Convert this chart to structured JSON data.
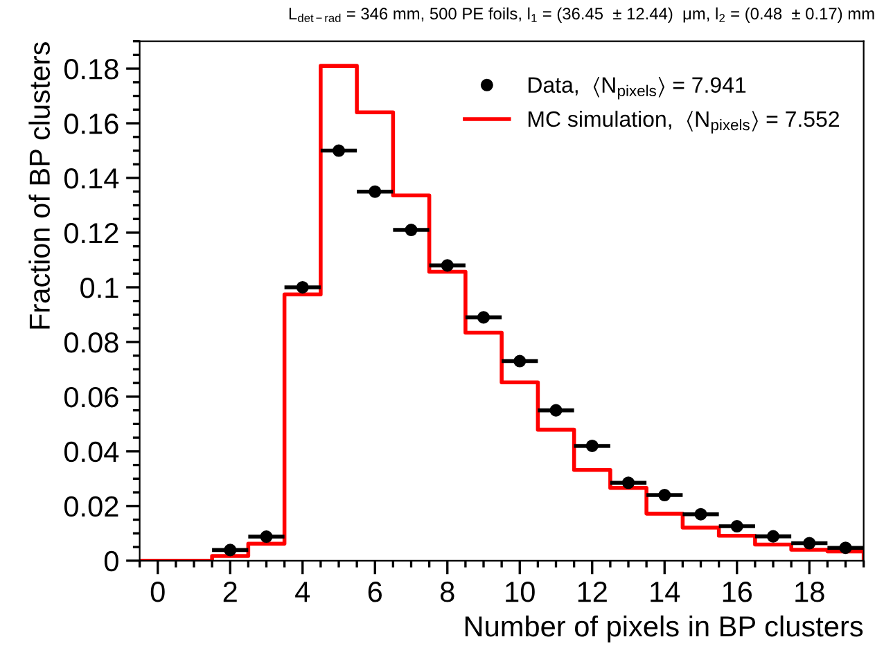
{
  "chart_data": {
    "type": "histogram",
    "title": "L$_{det−rad}$ = 346 mm, 500 PE foils, l$_{1}$ = (36.45  ± 12.44)  μm, l$_{2}$ = (0.48  ± 0.17) mm",
    "xlabel": "Number of pixels in BP clusters",
    "ylabel": "Fraction of BP clusters",
    "bins": [
      -0.5,
      0.5,
      1.5,
      2.5,
      3.5,
      4.5,
      5.5,
      6.5,
      7.5,
      8.5,
      9.5,
      10.5,
      11.5,
      12.5,
      13.5,
      14.5,
      15.5,
      16.5,
      17.5,
      18.5,
      19.5
    ],
    "series": [
      {
        "name": "Data,  ⟨N$_{pixels}$⟩ = 7.941",
        "type": "scatter",
        "color": "#000000",
        "marker": "circle",
        "x": [
          2,
          3,
          4,
          5,
          6,
          7,
          8,
          9,
          10,
          11,
          12,
          13,
          14,
          15,
          16,
          17,
          18,
          19
        ],
        "values": [
          0.0039,
          0.0088,
          0.1,
          0.15,
          0.135,
          0.121,
          0.108,
          0.089,
          0.073,
          0.055,
          0.042,
          0.0285,
          0.024,
          0.017,
          0.0126,
          0.0089,
          0.0064,
          0.0047
        ],
        "xerrors": [
          0.5,
          0.5,
          0.5,
          0.5,
          0.5,
          0.5,
          0.5,
          0.5,
          0.5,
          0.5,
          0.5,
          0.5,
          0.5,
          0.5,
          0.5,
          0.5,
          0.5,
          0.5
        ]
      },
      {
        "name": "MC simulation,  ⟨N$_{pixels}$⟩ = 7.552",
        "color": "#ff0000",
        "values": [
          0,
          0,
          0.0017,
          0.0062,
          0.0974,
          0.181,
          0.164,
          0.1336,
          0.1057,
          0.0834,
          0.0652,
          0.0479,
          0.0332,
          0.0266,
          0.0172,
          0.0121,
          0.0091,
          0.0059,
          0.004,
          0.0034
        ]
      }
    ],
    "xlim": [
      -0.5,
      19.5
    ],
    "ylim": [
      0,
      0.19
    ],
    "xticks": [
      0,
      2,
      4,
      6,
      8,
      10,
      12,
      14,
      16,
      18
    ],
    "yticks": [
      0,
      0.02,
      0.04,
      0.06,
      0.08,
      0.1,
      0.12,
      0.14,
      0.16,
      0.18
    ],
    "grid": false,
    "legend": "top right"
  }
}
